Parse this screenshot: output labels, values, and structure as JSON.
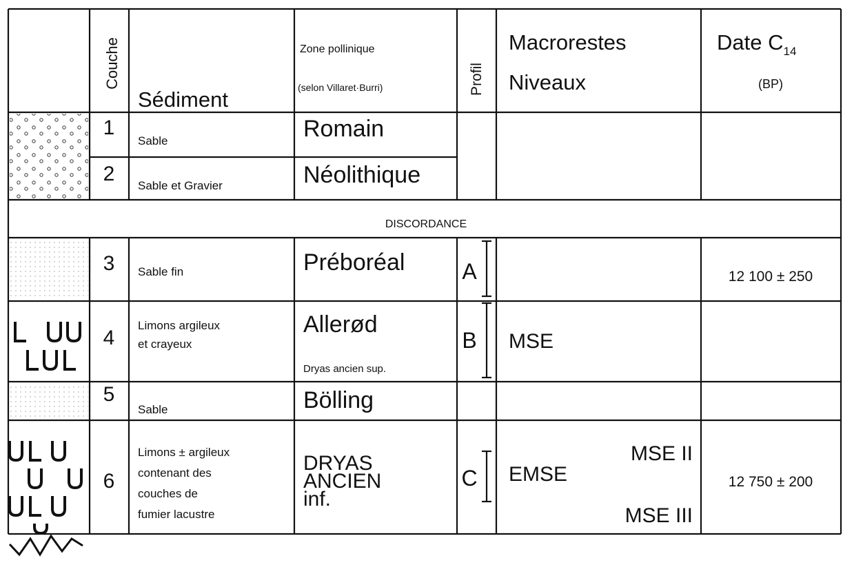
{
  "header": {
    "couche": "Couche",
    "sediment": "Sédiment",
    "zone": "Zone pollinique",
    "zone_note": "(selon Villaret·Burri)",
    "profil": "Profil",
    "macrorestes": "Macrorestes",
    "niveaux": "Niveaux",
    "date": "Date C",
    "date_subscript": "14",
    "date_unit": "(BP)"
  },
  "rows": [
    {
      "couche": "1",
      "sediment": [
        "Sable"
      ],
      "zone": [
        "Romain"
      ]
    },
    {
      "couche": "2",
      "sediment": [
        "Sable et Gravier"
      ],
      "zone": [
        "Néolithique"
      ]
    },
    {
      "couche": "3",
      "sediment": [
        "Sable fin"
      ],
      "zone": [
        "Préboréal"
      ],
      "profil": "A",
      "date": "12 100 ± 250"
    },
    {
      "couche": "4",
      "sediment": [
        "Limons argileux",
        "et crayeux"
      ],
      "zone": [
        "Allerød"
      ],
      "zone_note": "Dryas ancien sup.",
      "profil": "B",
      "macrorestes": [
        "MSE"
      ]
    },
    {
      "couche": "5",
      "sediment": [
        "Sable"
      ],
      "zone": [
        "Bölling"
      ]
    },
    {
      "couche": "6",
      "sediment": [
        "Limons ± argileux",
        "contenant des",
        "couches de",
        "fumier lacustre"
      ],
      "zone": [
        "DRYAS",
        "ANCIEN",
        "inf."
      ],
      "profil": "C",
      "macrorestes": [
        "EMSE",
        "MSE II",
        "MSE III"
      ],
      "date": "12 750 ± 200"
    }
  ],
  "discordance": "DISCORDANCE"
}
